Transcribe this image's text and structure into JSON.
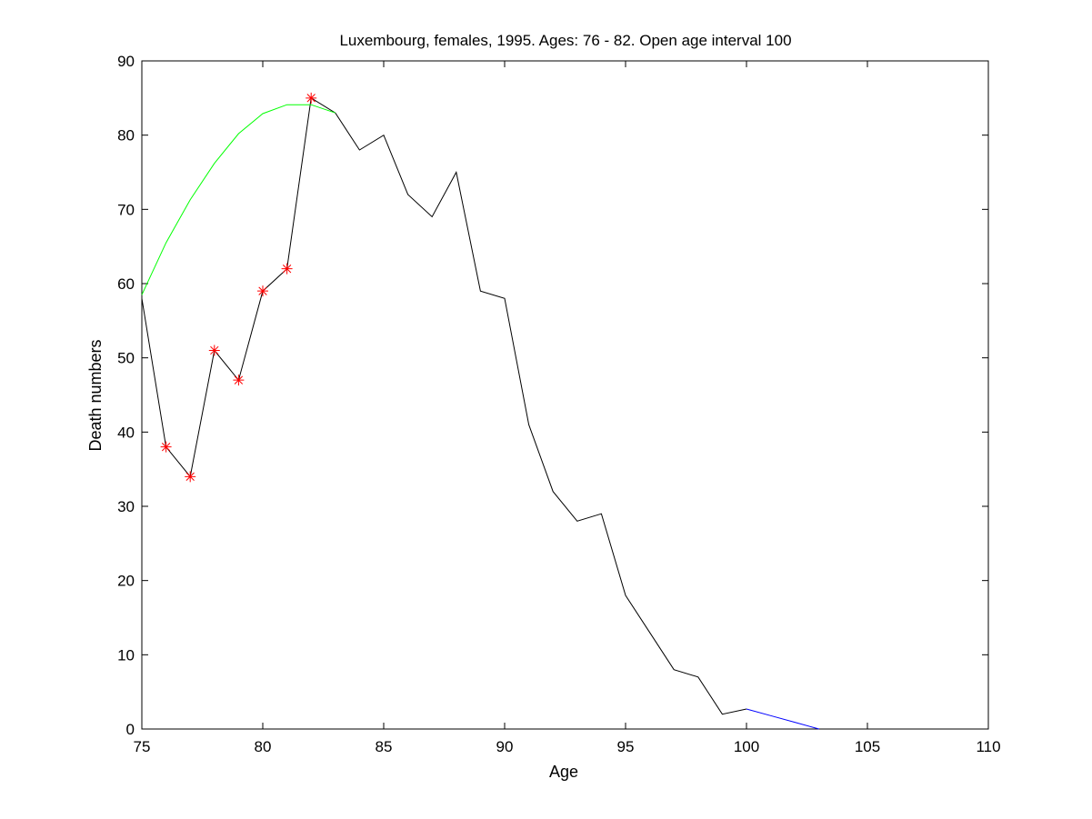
{
  "chart_data": {
    "type": "line",
    "title": "Luxembourg, females, 1995. Ages: 76 - 82. Open age interval 100",
    "xlabel": "Age",
    "ylabel": "Death numbers",
    "xlim": [
      75,
      110
    ],
    "ylim": [
      0,
      90
    ],
    "xticks": [
      75,
      80,
      85,
      90,
      95,
      100,
      105,
      110
    ],
    "yticks": [
      0,
      10,
      20,
      30,
      40,
      50,
      60,
      70,
      80,
      90
    ],
    "grid": false,
    "colors": {
      "observed": "#000000",
      "fitted": "#00ff00",
      "extrapolated": "#0000ff",
      "markers": "#ff0000"
    },
    "series": [
      {
        "x": [
          75,
          76,
          77,
          78,
          79,
          80,
          81,
          82,
          83,
          84,
          85,
          86,
          87,
          88,
          89,
          90,
          91,
          92,
          93,
          94,
          95,
          96,
          97,
          98,
          99,
          100
        ],
        "values": [
          58,
          38,
          34,
          51,
          47,
          59,
          62,
          85,
          83,
          78,
          80,
          72,
          69,
          75,
          59,
          58,
          41,
          32,
          28,
          29,
          18,
          13,
          8,
          7,
          2,
          2.7
        ],
        "style": "line",
        "color": "#000000"
      },
      {
        "x": [
          75,
          76,
          77,
          78,
          79,
          80,
          81,
          82,
          83
        ],
        "values": [
          58.5,
          65.5,
          71.3,
          76.2,
          80.2,
          82.9,
          84.1,
          84.1,
          83
        ],
        "style": "line",
        "color": "#00ff00"
      },
      {
        "x": [
          100,
          101,
          102,
          103
        ],
        "values": [
          2.7,
          1.8,
          0.9,
          0
        ],
        "style": "line",
        "color": "#0000ff"
      },
      {
        "x": [
          76,
          77,
          78,
          79,
          80,
          81,
          82
        ],
        "values": [
          38,
          34,
          51,
          47,
          59,
          62,
          85
        ],
        "style": "markers",
        "marker": "asterisk",
        "color": "#ff0000"
      }
    ]
  }
}
